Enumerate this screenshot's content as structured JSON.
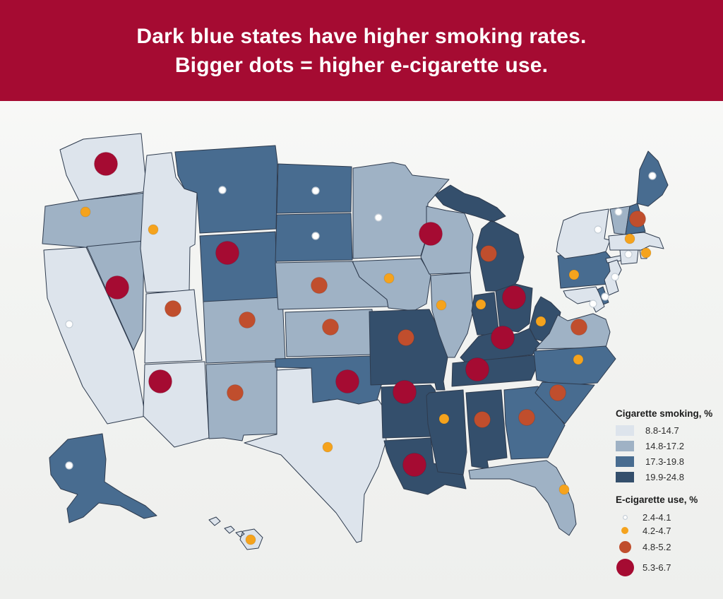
{
  "header": {
    "line1": "Dark blue states have higher smoking rates.",
    "line2": "Bigger dots = higher e-cigarette use."
  },
  "legend": {
    "smoking_title": "Cigarette smoking, %",
    "ecig_title": "E-cigarette use, %"
  },
  "colors": {
    "header_bg": "#a50b32",
    "background": "#f3f4f2",
    "text": "#2d2d2d",
    "state_border": "#2e3b4e",
    "smoking_bins": [
      "#dde4ec",
      "#9fb2c5",
      "#486c90",
      "#344f6c"
    ],
    "ecig_bins": [
      "#ffffff",
      "#f5a31d",
      "#c04e2d",
      "#a50b32"
    ]
  },
  "chart_data": {
    "type": "choropleth-symbol-map",
    "region": "United States, 50 states",
    "title": "Dark blue states have higher smoking rates. Bigger dots = higher e-cigarette use.",
    "fill_variable": "Cigarette smoking, %",
    "symbol_variable": "E-cigarette use, %",
    "smoking_bins": [
      "8.8-14.7",
      "14.8-17.2",
      "17.3-19.8",
      "19.9-24.8"
    ],
    "ecig_bins": [
      "2.4-4.1",
      "4.2-4.7",
      "4.8-5.2",
      "5.3-6.7"
    ],
    "states": [
      {
        "abbr": "CA",
        "name": "California",
        "smoking_bin": 1,
        "ecig_bin": 1
      },
      {
        "abbr": "OR",
        "name": "Oregon",
        "smoking_bin": 2,
        "ecig_bin": 2
      },
      {
        "abbr": "WA",
        "name": "Washington",
        "smoking_bin": 1,
        "ecig_bin": 4
      },
      {
        "abbr": "NV",
        "name": "Nevada",
        "smoking_bin": 2,
        "ecig_bin": 4
      },
      {
        "abbr": "ID",
        "name": "Idaho",
        "smoking_bin": 1,
        "ecig_bin": 2
      },
      {
        "abbr": "MT",
        "name": "Montana",
        "smoking_bin": 3,
        "ecig_bin": 1
      },
      {
        "abbr": "WY",
        "name": "Wyoming",
        "smoking_bin": 3,
        "ecig_bin": 4
      },
      {
        "abbr": "UT",
        "name": "Utah",
        "smoking_bin": 1,
        "ecig_bin": 3
      },
      {
        "abbr": "CO",
        "name": "Colorado",
        "smoking_bin": 2,
        "ecig_bin": 3
      },
      {
        "abbr": "AZ",
        "name": "Arizona",
        "smoking_bin": 1,
        "ecig_bin": 4
      },
      {
        "abbr": "NM",
        "name": "New Mexico",
        "smoking_bin": 2,
        "ecig_bin": 3
      },
      {
        "abbr": "ND",
        "name": "North Dakota",
        "smoking_bin": 3,
        "ecig_bin": 1
      },
      {
        "abbr": "SD",
        "name": "South Dakota",
        "smoking_bin": 3,
        "ecig_bin": 1
      },
      {
        "abbr": "NE",
        "name": "Nebraska",
        "smoking_bin": 2,
        "ecig_bin": 3
      },
      {
        "abbr": "KS",
        "name": "Kansas",
        "smoking_bin": 2,
        "ecig_bin": 3
      },
      {
        "abbr": "OK",
        "name": "Oklahoma",
        "smoking_bin": 3,
        "ecig_bin": 4
      },
      {
        "abbr": "TX",
        "name": "Texas",
        "smoking_bin": 1,
        "ecig_bin": 2
      },
      {
        "abbr": "MN",
        "name": "Minnesota",
        "smoking_bin": 2,
        "ecig_bin": 1
      },
      {
        "abbr": "IA",
        "name": "Iowa",
        "smoking_bin": 2,
        "ecig_bin": 2
      },
      {
        "abbr": "MO",
        "name": "Missouri",
        "smoking_bin": 4,
        "ecig_bin": 3
      },
      {
        "abbr": "AR",
        "name": "Arkansas",
        "smoking_bin": 4,
        "ecig_bin": 4
      },
      {
        "abbr": "LA",
        "name": "Louisiana",
        "smoking_bin": 4,
        "ecig_bin": 4
      },
      {
        "abbr": "WI",
        "name": "Wisconsin",
        "smoking_bin": 2,
        "ecig_bin": 4
      },
      {
        "abbr": "IL",
        "name": "Illinois",
        "smoking_bin": 2,
        "ecig_bin": 2
      },
      {
        "abbr": "MS",
        "name": "Mississippi",
        "smoking_bin": 4,
        "ecig_bin": 2
      },
      {
        "abbr": "AL",
        "name": "Alabama",
        "smoking_bin": 4,
        "ecig_bin": 3
      },
      {
        "abbr": "GA",
        "name": "Georgia",
        "smoking_bin": 3,
        "ecig_bin": 3
      },
      {
        "abbr": "FL",
        "name": "Florida",
        "smoking_bin": 2,
        "ecig_bin": 2
      },
      {
        "abbr": "MI",
        "name": "Michigan",
        "smoking_bin": 4,
        "ecig_bin": 3
      },
      {
        "abbr": "IN",
        "name": "Indiana",
        "smoking_bin": 4,
        "ecig_bin": 2
      },
      {
        "abbr": "OH",
        "name": "Ohio",
        "smoking_bin": 4,
        "ecig_bin": 4
      },
      {
        "abbr": "KY",
        "name": "Kentucky",
        "smoking_bin": 4,
        "ecig_bin": 4
      },
      {
        "abbr": "TN",
        "name": "Tennessee",
        "smoking_bin": 4,
        "ecig_bin": 4
      },
      {
        "abbr": "WV",
        "name": "West Virginia",
        "smoking_bin": 4,
        "ecig_bin": 2
      },
      {
        "abbr": "VA",
        "name": "Virginia",
        "smoking_bin": 2,
        "ecig_bin": 3
      },
      {
        "abbr": "NC",
        "name": "North Carolina",
        "smoking_bin": 3,
        "ecig_bin": 2
      },
      {
        "abbr": "SC",
        "name": "South Carolina",
        "smoking_bin": 3,
        "ecig_bin": 3
      },
      {
        "abbr": "PA",
        "name": "Pennsylvania",
        "smoking_bin": 3,
        "ecig_bin": 2
      },
      {
        "abbr": "NY",
        "name": "New York",
        "smoking_bin": 1,
        "ecig_bin": 1
      },
      {
        "abbr": "NJ",
        "name": "New Jersey",
        "smoking_bin": 1,
        "ecig_bin": 1
      },
      {
        "abbr": "DE",
        "name": "Delaware",
        "smoking_bin": 3,
        "ecig_bin": 1
      },
      {
        "abbr": "MD",
        "name": "Maryland",
        "smoking_bin": 1,
        "ecig_bin": 1
      },
      {
        "abbr": "CT",
        "name": "Connecticut",
        "smoking_bin": 1,
        "ecig_bin": 1
      },
      {
        "abbr": "RI",
        "name": "Rhode Island",
        "smoking_bin": 1,
        "ecig_bin": 2
      },
      {
        "abbr": "MA",
        "name": "Massachusetts",
        "smoking_bin": 1,
        "ecig_bin": 2
      },
      {
        "abbr": "VT",
        "name": "Vermont",
        "smoking_bin": 2,
        "ecig_bin": 1
      },
      {
        "abbr": "NH",
        "name": "New Hampshire",
        "smoking_bin": 3,
        "ecig_bin": 3
      },
      {
        "abbr": "ME",
        "name": "Maine",
        "smoking_bin": 3,
        "ecig_bin": 1
      },
      {
        "abbr": "AK",
        "name": "Alaska",
        "smoking_bin": 3,
        "ecig_bin": 1
      },
      {
        "abbr": "HI",
        "name": "Hawaii",
        "smoking_bin": 1,
        "ecig_bin": 2
      }
    ]
  }
}
